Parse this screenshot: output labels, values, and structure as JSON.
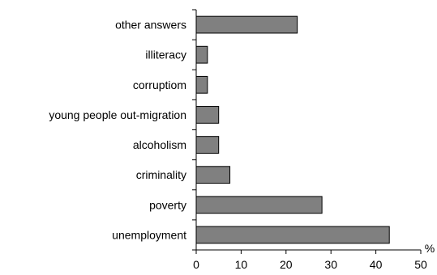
{
  "chart_data": {
    "type": "bar",
    "orientation": "horizontal",
    "categories": [
      "other answers",
      "illiteracy",
      "corruptiom",
      "young people out-migration",
      "alcoholism",
      "criminality",
      "poverty",
      "unemployment"
    ],
    "values": [
      22.5,
      2.5,
      2.5,
      5,
      5,
      7.5,
      28,
      43
    ],
    "xlim": [
      0,
      50
    ],
    "xticks": [
      "0",
      "10",
      "20",
      "30",
      "40",
      "50"
    ],
    "xunit": "%",
    "title": "",
    "xlabel": "",
    "ylabel": "",
    "grid": false,
    "legend": "none",
    "bar_fill": "#808080",
    "bar_stroke": "#000000"
  }
}
